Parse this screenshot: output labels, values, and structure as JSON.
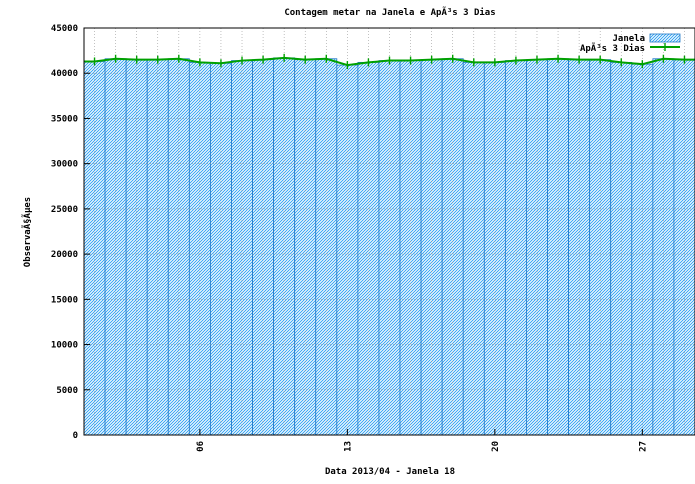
{
  "chart_data": {
    "type": "bar",
    "title": "Contagem metar na Janela e ApÃ³s 3 Dias",
    "xlabel": "Data 2013/04 - Janela 18",
    "ylabel": "ObservaÃ§Ãµes",
    "ylim": [
      0,
      45000
    ],
    "y_ticks": [
      0,
      5000,
      10000,
      15000,
      20000,
      25000,
      30000,
      35000,
      40000,
      45000
    ],
    "x_ticks": [
      {
        "label": "06",
        "day": 6
      },
      {
        "label": "13",
        "day": 13
      },
      {
        "label": "20",
        "day": 20
      },
      {
        "label": "27",
        "day": 27
      }
    ],
    "x_range": [
      0.5,
      29.5
    ],
    "grid": true,
    "legend_position": "top-right",
    "categories": [
      1,
      2,
      3,
      4,
      5,
      6,
      7,
      8,
      9,
      10,
      11,
      12,
      13,
      14,
      15,
      16,
      17,
      18,
      19,
      20,
      21,
      22,
      23,
      24,
      25,
      26,
      27,
      28,
      29
    ],
    "series": [
      {
        "name": "Janela",
        "kind": "bar",
        "color": "#3fa9f5",
        "values": [
          41300,
          41600,
          41500,
          41500,
          41600,
          41200,
          41100,
          41400,
          41500,
          41700,
          41500,
          41600,
          40900,
          41200,
          41400,
          41400,
          41500,
          41600,
          41200,
          41200,
          41400,
          41500,
          41600,
          41500,
          41500,
          41200,
          41000,
          41600,
          41500
        ]
      },
      {
        "name": "ApÃ³s 3 Dias",
        "kind": "line",
        "color": "#00a000",
        "values": [
          41300,
          41600,
          41500,
          41500,
          41600,
          41200,
          41100,
          41400,
          41500,
          41700,
          41500,
          41600,
          40900,
          41200,
          41400,
          41400,
          41500,
          41600,
          41200,
          41200,
          41400,
          41500,
          41600,
          41500,
          41500,
          41200,
          41000,
          41600,
          41500
        ]
      }
    ]
  }
}
